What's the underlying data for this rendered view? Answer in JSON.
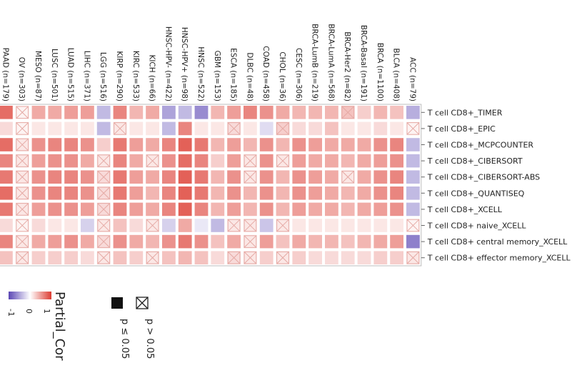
{
  "chart_data": {
    "type": "heatmap",
    "columns": [
      "PAAD (n=179)",
      "OV (n=303)",
      "MESO (n=87)",
      "LUSC (n=501)",
      "LUAD (n=515)",
      "LIHC (n=371)",
      "LGG (n=516)",
      "KIRP (n=290)",
      "KIRC (n=533)",
      "KICH (n=66)",
      "HNSC-HPV- (n=422)",
      "HNSC-HPV+ (n=98)",
      "HNSC (n=522)",
      "GBM (n=153)",
      "ESCA (n=185)",
      "DLBC (n=48)",
      "COAD (n=458)",
      "CHOL (n=36)",
      "CESC (n=306)",
      "BRCA-LumB (n=219)",
      "BRCA-LumA (n=568)",
      "BRCA-Her2 (n=82)",
      "BRCA-Basal (n=191)",
      "BRCA (n=1100)",
      "BLCA (n=408)",
      "ACC (n=79)"
    ],
    "rows": [
      "T cell CD8+_TIMER",
      "T cell CD8+_EPIC",
      "T cell CD8+_MCPCOUNTER",
      "T cell CD8+_CIBERSORT",
      "T cell CD8+_CIBERSORT-ABS",
      "T cell CD8+_QUANTISEQ",
      "T cell CD8+_XCELL",
      "T cell CD8+ naive_XCELL",
      "T cell CD8+ central memory_XCELL",
      "T cell CD8+ effector memory_XCELL"
    ],
    "values": [
      [
        0.6,
        0.05,
        0.35,
        0.35,
        0.4,
        0.4,
        -0.3,
        0.5,
        0.3,
        0.35,
        -0.4,
        -0.3,
        -0.5,
        0.3,
        0.4,
        0.5,
        0.45,
        0.35,
        0.3,
        0.3,
        0.3,
        0.25,
        0.2,
        0.3,
        0.25,
        -0.35
      ],
      [
        0.15,
        0.05,
        0.1,
        0.1,
        0.1,
        0.1,
        -0.3,
        0.1,
        0.1,
        0.1,
        -0.3,
        0.5,
        0.1,
        0.1,
        0.15,
        0.1,
        -0.15,
        0.2,
        0.15,
        0.15,
        0.25,
        0.1,
        0.1,
        0.15,
        0.1,
        0.05
      ],
      [
        0.6,
        0.1,
        0.45,
        0.5,
        0.5,
        0.45,
        0.2,
        0.55,
        0.4,
        0.35,
        0.5,
        0.65,
        0.55,
        0.3,
        0.4,
        0.3,
        0.45,
        0.3,
        0.45,
        0.4,
        0.35,
        0.35,
        0.35,
        0.45,
        0.5,
        -0.3
      ],
      [
        0.5,
        0.1,
        0.4,
        0.45,
        0.45,
        0.35,
        0.1,
        0.5,
        0.35,
        0.1,
        0.45,
        0.6,
        0.5,
        0.2,
        0.4,
        0.1,
        0.45,
        0.1,
        0.4,
        0.35,
        0.35,
        0.3,
        0.35,
        0.4,
        0.45,
        -0.3
      ],
      [
        0.55,
        0.1,
        0.45,
        0.5,
        0.5,
        0.45,
        0.15,
        0.55,
        0.4,
        0.35,
        0.5,
        0.65,
        0.55,
        0.3,
        0.45,
        0.1,
        0.45,
        0.3,
        0.45,
        0.4,
        0.35,
        0.1,
        0.35,
        0.45,
        0.5,
        -0.3
      ],
      [
        0.6,
        0.1,
        0.45,
        0.5,
        0.5,
        0.45,
        0.15,
        0.55,
        0.4,
        0.3,
        0.5,
        0.65,
        0.55,
        0.3,
        0.45,
        0.3,
        0.45,
        0.3,
        0.45,
        0.4,
        0.35,
        0.3,
        0.35,
        0.45,
        0.5,
        -0.3
      ],
      [
        0.55,
        0.1,
        0.4,
        0.45,
        0.45,
        0.4,
        0.15,
        0.5,
        0.4,
        0.35,
        0.5,
        0.65,
        0.5,
        0.3,
        0.4,
        0.3,
        0.45,
        0.3,
        0.4,
        0.35,
        0.35,
        0.3,
        0.35,
        0.4,
        0.45,
        -0.3
      ],
      [
        0.15,
        0.05,
        0.15,
        0.1,
        0.1,
        -0.2,
        0.1,
        0.25,
        0.15,
        0.1,
        -0.2,
        0.35,
        -0.1,
        -0.3,
        0.1,
        0.1,
        -0.25,
        0.1,
        0.1,
        0.1,
        0.1,
        0.1,
        0.1,
        0.1,
        0.1,
        0.05
      ],
      [
        0.5,
        0.1,
        0.35,
        0.4,
        0.45,
        0.35,
        0.15,
        0.45,
        0.35,
        0.3,
        0.45,
        0.55,
        0.45,
        0.25,
        0.35,
        0.1,
        0.4,
        0.25,
        0.35,
        0.3,
        0.3,
        0.25,
        0.3,
        0.35,
        0.4,
        -0.55
      ],
      [
        0.25,
        0.1,
        0.2,
        0.2,
        0.2,
        0.15,
        0.1,
        0.25,
        0.2,
        0.1,
        0.25,
        0.3,
        0.25,
        0.15,
        0.15,
        0.1,
        0.2,
        0.1,
        0.2,
        0.15,
        0.15,
        0.15,
        0.15,
        0.2,
        0.2,
        0.1
      ]
    ],
    "insignificant": [
      [
        0,
        1,
        0,
        0,
        0,
        0,
        0,
        0,
        0,
        0,
        0,
        0,
        0,
        0,
        0,
        0,
        0,
        0,
        0,
        0,
        0,
        1,
        0,
        0,
        0,
        0
      ],
      [
        0,
        1,
        0,
        0,
        0,
        0,
        0,
        1,
        0,
        0,
        0,
        0,
        0,
        0,
        1,
        0,
        0,
        1,
        0,
        0,
        0,
        0,
        0,
        0,
        0,
        1
      ],
      [
        0,
        1,
        0,
        0,
        0,
        0,
        0,
        0,
        0,
        0,
        0,
        0,
        0,
        0,
        0,
        0,
        0,
        0,
        0,
        0,
        0,
        0,
        0,
        0,
        0,
        0
      ],
      [
        0,
        1,
        0,
        0,
        0,
        0,
        1,
        0,
        0,
        1,
        0,
        0,
        0,
        0,
        0,
        1,
        0,
        1,
        0,
        0,
        0,
        0,
        0,
        0,
        0,
        0
      ],
      [
        0,
        1,
        0,
        0,
        0,
        0,
        1,
        0,
        0,
        0,
        0,
        0,
        0,
        0,
        0,
        1,
        0,
        0,
        0,
        0,
        0,
        1,
        0,
        0,
        0,
        0
      ],
      [
        0,
        1,
        0,
        0,
        0,
        0,
        1,
        0,
        0,
        0,
        0,
        0,
        0,
        0,
        0,
        0,
        0,
        0,
        0,
        0,
        0,
        0,
        0,
        0,
        0,
        0
      ],
      [
        0,
        1,
        0,
        0,
        0,
        0,
        1,
        0,
        0,
        0,
        0,
        0,
        0,
        0,
        0,
        0,
        0,
        0,
        0,
        0,
        0,
        0,
        0,
        0,
        0,
        0
      ],
      [
        0,
        1,
        0,
        0,
        0,
        0,
        1,
        0,
        0,
        1,
        0,
        0,
        0,
        0,
        1,
        1,
        0,
        1,
        0,
        0,
        0,
        0,
        0,
        0,
        0,
        1
      ],
      [
        0,
        1,
        0,
        0,
        0,
        0,
        1,
        0,
        0,
        0,
        0,
        0,
        0,
        0,
        0,
        1,
        0,
        0,
        0,
        0,
        0,
        0,
        0,
        0,
        0,
        0
      ],
      [
        0,
        1,
        0,
        0,
        0,
        0,
        1,
        0,
        0,
        1,
        0,
        0,
        0,
        0,
        1,
        1,
        0,
        1,
        0,
        0,
        0,
        0,
        0,
        0,
        0,
        1
      ]
    ],
    "legend": {
      "title": "Partial_Cor",
      "ticks": [
        "1",
        "0",
        "-1"
      ],
      "sig_symbols": [
        "p > 0.05",
        "p ≤ 0.05"
      ]
    },
    "colors": {
      "positive": "#dc3c32",
      "negative": "#5a46b4",
      "zero": "#ffffff"
    }
  }
}
